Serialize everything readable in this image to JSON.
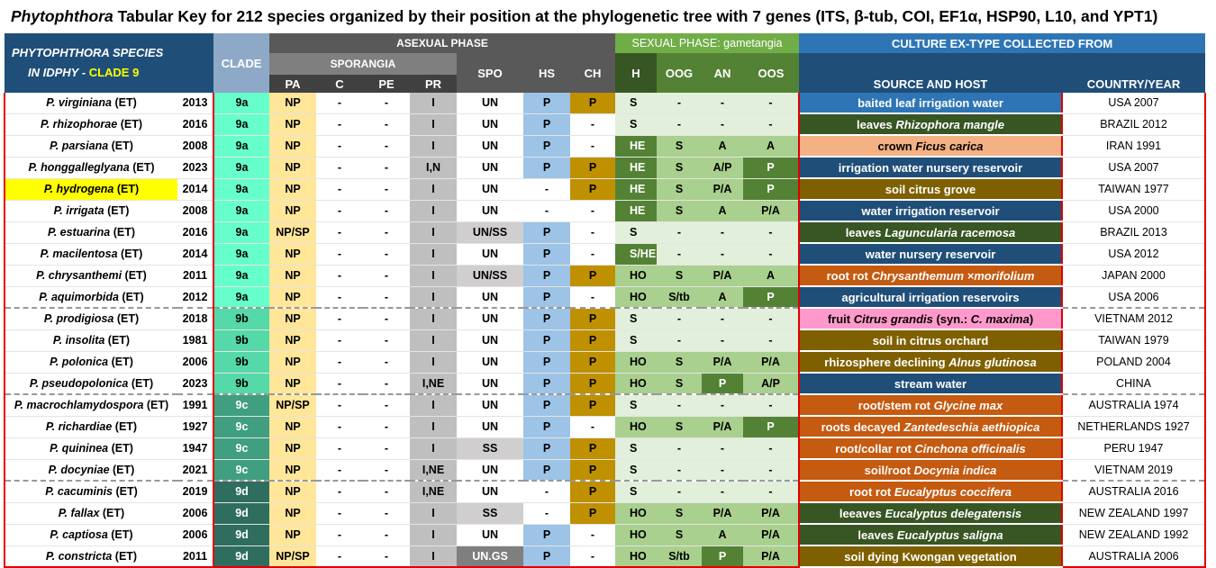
{
  "title": {
    "genus": "Phytophthora",
    "text": " Tabular Key for 212 species organized by their position at the phylogenetic tree with 7 genes (ITS, β-tub, COI, EF1α, HSP90, L10, and YPT1)"
  },
  "header": {
    "species_line1": "PHYTOPHTHORA SPECIES",
    "species_line2_prefix": "IN ",
    "species_line2_idphy": "IDPHY",
    "species_line2_dash": " - ",
    "species_line2_clade": "CLADE 9",
    "clade": "CLADE",
    "asexual": "ASEXUAL PHASE",
    "sporangia": "SPORANGIA",
    "pa": "PA",
    "c": "C",
    "pe": "PE",
    "pr": "PR",
    "spo": "SPO",
    "hs": "HS",
    "ch": "CH",
    "sexual": "SEXUAL PHASE: gametangia",
    "h": "H",
    "oog": "OOG",
    "an": "AN",
    "oos": "OOS",
    "culture": "CULTURE EX-TYPE COLLECTED FROM",
    "source": "SOURCE AND HOST",
    "country": "COUNTRY/YEAR"
  },
  "colors": {
    "clade_9a": "#66ffcc",
    "clade_9b": "#55d9a8",
    "clade_9c": "#3f9f80",
    "clade_9d": "#2f6e5e",
    "pa_bg": "#ffe699",
    "pr_bg": "#bfbfbf",
    "hs_bg": "#9dc3e6",
    "ch_bg": "#bf9000",
    "sex_light": "#e2efda",
    "sex_mid": "#a9d08e",
    "sex_dark": "#548235",
    "highlight": "#ffff00"
  },
  "rows": [
    {
      "species": "P. virginiana",
      "suffix": " (ET)",
      "year": "2013",
      "clade": "9a",
      "pa": "NP",
      "c": "-",
      "pe": "-",
      "pr": "I",
      "spo": "UN",
      "hs": "P",
      "ch": "P",
      "h": "S",
      "oog": "-",
      "an": "-",
      "oos": "-",
      "source": [
        {
          "t": "baited leaf irrigation water",
          "i": false
        }
      ],
      "src_bg": "#2e75b6",
      "country": "USA 2007"
    },
    {
      "species": "P. rhizophorae",
      "suffix": " (ET)",
      "year": "2016",
      "clade": "9a",
      "pa": "NP",
      "c": "-",
      "pe": "-",
      "pr": "I",
      "spo": "UN",
      "hs": "P",
      "ch": "-",
      "h": "S",
      "oog": "-",
      "an": "-",
      "oos": "-",
      "source": [
        {
          "t": "leaves ",
          "i": false
        },
        {
          "t": "Rhizophora mangle",
          "i": true
        }
      ],
      "src_bg": "#375623",
      "country": "BRAZIL 2012"
    },
    {
      "species": "P. parsiana",
      "suffix": " (ET)",
      "year": "2008",
      "clade": "9a",
      "pa": "NP",
      "c": "-",
      "pe": "-",
      "pr": "I",
      "spo": "UN",
      "hs": "P",
      "ch": "-",
      "h": "HE",
      "oog": "S",
      "an": "A",
      "oos": "A",
      "source": [
        {
          "t": "crown ",
          "i": false
        },
        {
          "t": "Ficus carica",
          "i": true
        }
      ],
      "src_bg": "#f4b183",
      "src_fg": "#000000",
      "country": "IRAN 1991"
    },
    {
      "species": "P. honggalleglyana",
      "suffix": " (ET)",
      "year": "2023",
      "clade": "9a",
      "pa": "NP",
      "c": "-",
      "pe": "-",
      "pr": "I,N",
      "spo": "UN",
      "hs": "P",
      "ch": "P",
      "h": "HE",
      "oog": "S",
      "an": "A/P",
      "oos": "P",
      "source": [
        {
          "t": "irrigation water nursery reservoir",
          "i": false
        }
      ],
      "src_bg": "#1f4e79",
      "country": "USA 2007"
    },
    {
      "species": "P. hydrogena",
      "suffix": " (ET)",
      "year": "2014",
      "clade": "9a",
      "pa": "NP",
      "c": "-",
      "pe": "-",
      "pr": "I",
      "spo": "UN",
      "hs": "-",
      "ch": "P",
      "h": "HE",
      "oog": "S",
      "an": "P/A",
      "oos": "P",
      "source": [
        {
          "t": "soil citrus grove",
          "i": false
        }
      ],
      "src_bg": "#7f6000",
      "country": "TAIWAN 1977",
      "hl": true
    },
    {
      "species": "P. irrigata",
      "suffix": " (ET)",
      "year": "2008",
      "clade": "9a",
      "pa": "NP",
      "c": "-",
      "pe": "-",
      "pr": "I",
      "spo": "UN",
      "hs": "-",
      "ch": "-",
      "h": "HE",
      "oog": "S",
      "an": "A",
      "oos": "P/A",
      "source": [
        {
          "t": "water irrigation reservoir",
          "i": false
        }
      ],
      "src_bg": "#1f4e79",
      "country": "USA 2000"
    },
    {
      "species": "P. estuarina",
      "suffix": " (ET)",
      "year": "2016",
      "clade": "9a",
      "pa": "NP/SP",
      "c": "-",
      "pe": "-",
      "pr": "I",
      "spo": "UN/SS",
      "hs": "P",
      "ch": "-",
      "h": "S",
      "oog": "-",
      "an": "-",
      "oos": "-",
      "source": [
        {
          "t": "leaves ",
          "i": false
        },
        {
          "t": "Laguncularia racemosa",
          "i": true
        }
      ],
      "src_bg": "#375623",
      "country": "BRAZIL 2013"
    },
    {
      "species": "P. macilentosa",
      "suffix": " (ET)",
      "year": "2014",
      "clade": "9a",
      "pa": "NP",
      "c": "-",
      "pe": "-",
      "pr": "I",
      "spo": "UN",
      "hs": "P",
      "ch": "-",
      "h": "S/HE",
      "oog": "-",
      "an": "-",
      "oos": "-",
      "source": [
        {
          "t": "water nursery reservoir",
          "i": false
        }
      ],
      "src_bg": "#1f4e79",
      "country": "USA 2012"
    },
    {
      "species": "P. chrysanthemi",
      "suffix": " (ET)",
      "year": "2011",
      "clade": "9a",
      "pa": "NP",
      "c": "-",
      "pe": "-",
      "pr": "I",
      "spo": "UN/SS",
      "hs": "P",
      "ch": "P",
      "h": "HO",
      "oog": "S",
      "an": "P/A",
      "oos": "A",
      "source": [
        {
          "t": "root rot ",
          "i": false
        },
        {
          "t": "Chrysanthemum ×morifolium",
          "i": true
        }
      ],
      "src_bg": "#c55a11",
      "country": "JAPAN 2000"
    },
    {
      "species": "P. aquimorbida",
      "suffix": " (ET)",
      "year": "2012",
      "clade": "9a",
      "pa": "NP",
      "c": "-",
      "pe": "-",
      "pr": "I",
      "spo": "UN",
      "hs": "P",
      "ch": "-",
      "h": "HO",
      "oog": "S/tb",
      "an": "A",
      "oos": "P",
      "source": [
        {
          "t": "agricultural irrigation reservoirs",
          "i": false
        }
      ],
      "src_bg": "#1f4e79",
      "country": "USA 2006"
    },
    {
      "species": "P. prodigiosa",
      "suffix": " (ET)",
      "year": "2018",
      "clade": "9b",
      "pa": "NP",
      "c": "-",
      "pe": "-",
      "pr": "I",
      "spo": "UN",
      "hs": "P",
      "ch": "P",
      "h": "S",
      "oog": "-",
      "an": "-",
      "oos": "-",
      "source": [
        {
          "t": "fruit ",
          "i": false
        },
        {
          "t": "Citrus grandis",
          "i": true
        },
        {
          "t": "  (syn.: ",
          "i": false
        },
        {
          "t": "C. maxima",
          "i": true
        },
        {
          "t": ")",
          "i": false
        }
      ],
      "src_bg": "#ff99cc",
      "src_fg": "#000000",
      "country": "VIETNAM 2012",
      "sep": true
    },
    {
      "species": "P. insolita",
      "suffix": " (ET)",
      "year": "1981",
      "clade": "9b",
      "pa": "NP",
      "c": "-",
      "pe": "-",
      "pr": "I",
      "spo": "UN",
      "hs": "P",
      "ch": "P",
      "h": "S",
      "oog": "-",
      "an": "-",
      "oos": "-",
      "source": [
        {
          "t": "soil in citrus orchard",
          "i": false
        }
      ],
      "src_bg": "#7f6000",
      "country": "TAIWAN 1979"
    },
    {
      "species": "P. polonica",
      "suffix": " (ET)",
      "year": "2006",
      "clade": "9b",
      "pa": "NP",
      "c": "-",
      "pe": "-",
      "pr": "I",
      "spo": "UN",
      "hs": "P",
      "ch": "P",
      "h": "HO",
      "oog": "S",
      "an": "P/A",
      "oos": "P/A",
      "source": [
        {
          "t": "rhizosphere declining ",
          "i": false
        },
        {
          "t": "Alnus glutinosa",
          "i": true
        }
      ],
      "src_bg": "#7f6000",
      "country": "POLAND 2004"
    },
    {
      "species": "P. pseudopolonica",
      "suffix": " (ET)",
      "year": "2023",
      "clade": "9b",
      "pa": "NP",
      "c": "-",
      "pe": "-",
      "pr": "I,NE",
      "spo": "UN",
      "hs": "P",
      "ch": "P",
      "h": "HO",
      "oog": "S",
      "an": "P",
      "oos": "A/P",
      "source": [
        {
          "t": "stream water",
          "i": false
        }
      ],
      "src_bg": "#1f4e79",
      "country": "CHINA"
    },
    {
      "species": "P. macrochlamydospora",
      "suffix": " (ET)",
      "year": "1991",
      "clade": "9c",
      "pa": "NP/SP",
      "c": "-",
      "pe": "-",
      "pr": "I",
      "spo": "UN",
      "hs": "P",
      "ch": "P",
      "h": "S",
      "oog": "-",
      "an": "-",
      "oos": "-",
      "source": [
        {
          "t": "root/stem rot ",
          "i": false
        },
        {
          "t": "Glycine max",
          "i": true
        }
      ],
      "src_bg": "#c55a11",
      "country": "AUSTRALIA 1974",
      "sep": true
    },
    {
      "species": "P. richardiae",
      "suffix": " (ET)",
      "year": "1927",
      "clade": "9c",
      "pa": "NP",
      "c": "-",
      "pe": "-",
      "pr": "I",
      "spo": "UN",
      "hs": "P",
      "ch": "-",
      "h": "HO",
      "oog": "S",
      "an": "P/A",
      "oos": "P",
      "source": [
        {
          "t": "roots decayed ",
          "i": false
        },
        {
          "t": "Zantedeschia aethiopica",
          "i": true
        }
      ],
      "src_bg": "#c55a11",
      "country": "NETHERLANDS 1927"
    },
    {
      "species": "P. quininea",
      "suffix": " (ET)",
      "year": "1947",
      "clade": "9c",
      "pa": "NP",
      "c": "-",
      "pe": "-",
      "pr": "I",
      "spo": "SS",
      "hs": "P",
      "ch": "P",
      "h": "S",
      "oog": "-",
      "an": "-",
      "oos": "-",
      "source": [
        {
          "t": "root/collar rot ",
          "i": false
        },
        {
          "t": "Cinchona officinalis",
          "i": true
        }
      ],
      "src_bg": "#c55a11",
      "country": "PERU 1947"
    },
    {
      "species": "P. docyniae",
      "suffix": " (ET)",
      "year": "2021",
      "clade": "9c",
      "pa": "NP",
      "c": "-",
      "pe": "-",
      "pr": "I,NE",
      "spo": "UN",
      "hs": "P",
      "ch": "P",
      "h": "S",
      "oog": "-",
      "an": "-",
      "oos": "-",
      "source": [
        {
          "t": "soil/root ",
          "i": false
        },
        {
          "t": "Docynia indica",
          "i": true
        }
      ],
      "src_bg": "#c55a11",
      "country": "VIETNAM 2019"
    },
    {
      "species": "P. cacuminis",
      "suffix": " (ET)",
      "year": "2019",
      "clade": "9d",
      "pa": "NP",
      "c": "-",
      "pe": "-",
      "pr": "I,NE",
      "spo": "UN",
      "hs": "-",
      "ch": "P",
      "h": "S",
      "oog": "-",
      "an": "-",
      "oos": "-",
      "source": [
        {
          "t": "root rot ",
          "i": false
        },
        {
          "t": "Eucalyptus coccifera",
          "i": true
        }
      ],
      "src_bg": "#c55a11",
      "country": "AUSTRALIA 2016",
      "sep": true
    },
    {
      "species": "P. fallax",
      "suffix": " (ET)",
      "year": "2006",
      "clade": "9d",
      "pa": "NP",
      "c": "-",
      "pe": "-",
      "pr": "I",
      "spo": "SS",
      "hs": "-",
      "ch": "P",
      "h": "HO",
      "oog": "S",
      "an": "P/A",
      "oos": "P/A",
      "source": [
        {
          "t": "leeaves ",
          "i": false
        },
        {
          "t": "Eucalyptus delegatensis",
          "i": true
        }
      ],
      "src_bg": "#375623",
      "country": "NEW ZEALAND 1997"
    },
    {
      "species": "P. captiosa",
      "suffix": " (ET)",
      "year": "2006",
      "clade": "9d",
      "pa": "NP",
      "c": "-",
      "pe": "-",
      "pr": "I",
      "spo": "UN",
      "hs": "P",
      "ch": "-",
      "h": "HO",
      "oog": "S",
      "an": "A",
      "oos": "P/A",
      "source": [
        {
          "t": "leaves ",
          "i": false
        },
        {
          "t": "Eucalyptus saligna",
          "i": true
        }
      ],
      "src_bg": "#375623",
      "country": "NEW ZEALAND 1992"
    },
    {
      "species": "P. constricta",
      "suffix": " (ET)",
      "year": "2011",
      "clade": "9d",
      "pa": "NP/SP",
      "c": "-",
      "pe": "-",
      "pr": "I",
      "spo": "UN.GS",
      "hs": "P",
      "ch": "-",
      "h": "HO",
      "oog": "S/tb",
      "an": "P",
      "oos": "P/A",
      "source": [
        {
          "t": "soil dying Kwongan vegetation",
          "i": false
        }
      ],
      "src_bg": "#7f6000",
      "country": "AUSTRALIA 2006"
    }
  ]
}
